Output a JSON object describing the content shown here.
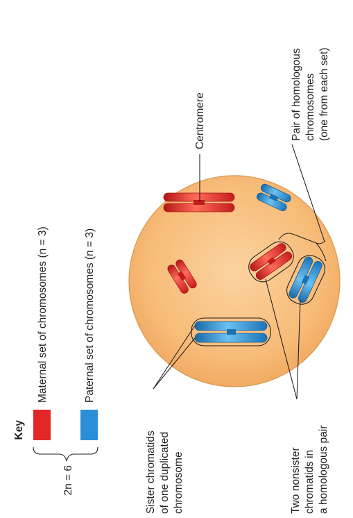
{
  "diagram": {
    "key": {
      "title": "Key",
      "formula": "2n = 6",
      "maternal_label": "Maternal set of chromosomes (n = 3)",
      "paternal_label": "Paternal set of chromosomes (n = 3)"
    },
    "labels": {
      "centromere": "Centromere",
      "homologous_pair_line1": "Pair of homologous",
      "homologous_pair_line2": "chromosomes",
      "homologous_pair_line3": "(one from each set)",
      "sister_line1": "Sister chromatids",
      "sister_line2": "of one duplicated",
      "sister_line3": "chromosome",
      "nonsister_line1": "Two nonsister",
      "nonsister_line2": "chromatids in",
      "nonsister_line3": "a homologous pair"
    },
    "colors": {
      "maternal": "#e32626",
      "paternal": "#2a8fd6",
      "cell_fill": "#f7b872",
      "cell_edge": "#d89a55"
    }
  }
}
